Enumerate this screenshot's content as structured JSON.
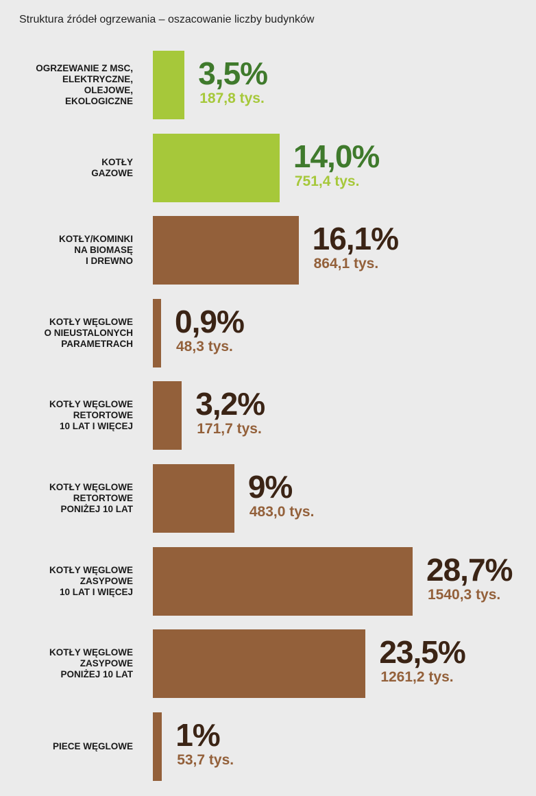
{
  "chart_data": {
    "type": "bar",
    "orientation": "horizontal",
    "title": "Struktura źródeł ogrzewania – oszacowanie liczby budynków",
    "xlabel": "",
    "ylabel": "",
    "xlim": [
      0,
      28.7
    ],
    "unit": "tys.",
    "categories": [
      [
        "OGRZEWANIE Z MSC,",
        "ELEKTRYCZNE,",
        "OLEJOWE,",
        "EKOLOGICZNE"
      ],
      [
        "KOTŁY",
        "GAZOWE"
      ],
      [
        "KOTŁY/KOMINKI",
        "NA BIOMASĘ",
        "I DREWNO"
      ],
      [
        "KOTŁY WĘGLOWE",
        "O NIEUSTALONYCH",
        "PARAMETRACH"
      ],
      [
        "KOTŁY WĘGLOWE",
        "RETORTOWE",
        "10 LAT I WIĘCEJ"
      ],
      [
        "KOTŁY WĘGLOWE",
        "RETORTOWE",
        "PONIŻEJ 10 LAT"
      ],
      [
        "KOTŁY WĘGLOWE",
        "ZASYPOWE",
        "10 LAT I WIĘCEJ"
      ],
      [
        "KOTŁY WĘGLOWE",
        "ZASYPOWE",
        "PONIŻEJ 10 LAT"
      ],
      [
        "PIECE WĘGLOWE"
      ]
    ],
    "values": [
      3.5,
      14.0,
      16.1,
      0.9,
      3.2,
      9.0,
      28.7,
      23.5,
      1.0
    ],
    "value_labels": [
      "3,5%",
      "14,0%",
      "16,1%",
      "0,9%",
      "3,2%",
      "9%",
      "28,7%",
      "23,5%",
      "1%"
    ],
    "count_labels": [
      "187,8 tys.",
      "751,4 tys.",
      "864,1 tys.",
      "48,3 tys.",
      "171,7 tys.",
      "483,0 tys.",
      "1540,3 tys.",
      "1261,2 tys.",
      "53,7 tys."
    ],
    "groups": [
      "green",
      "green",
      "brown",
      "brown",
      "brown",
      "brown",
      "brown",
      "brown",
      "brown"
    ]
  },
  "colors": {
    "green_bar": "#a6c83a",
    "green_pct": "#3f7a2c",
    "green_abs": "#a6c83a",
    "brown_bar": "#93603a",
    "brown_pct": "#3b2415",
    "brown_abs": "#93603a"
  }
}
